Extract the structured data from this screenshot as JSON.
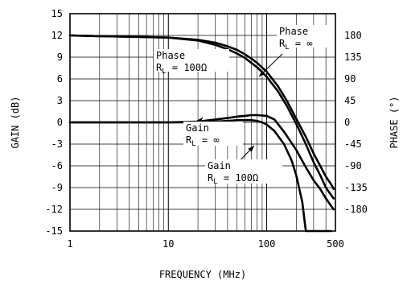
{
  "chart_data": {
    "type": "line",
    "xlabel": "FREQUENCY (MHz)",
    "ylabel": "GAIN (dB)",
    "y2label": "PHASE (°)",
    "x_scale": "log",
    "xlim": [
      1,
      500
    ],
    "ylim": [
      -15,
      15
    ],
    "y2lim": [
      -225,
      225
    ],
    "grid": true,
    "x_ticks": [
      {
        "value": 1,
        "label": "1"
      },
      {
        "value": 10,
        "label": "10"
      },
      {
        "value": 100,
        "label": "100"
      },
      {
        "value": 500,
        "label": "500"
      }
    ],
    "y_ticks": [
      "15",
      "12",
      "9",
      "6",
      "3",
      "0",
      "-3",
      "-6",
      "-9",
      "-12",
      "-15"
    ],
    "y2_ticks": [
      "180",
      "135",
      "90",
      "45",
      "0",
      "-45",
      "-90",
      "-135",
      "-180"
    ],
    "y2_tick_values": [
      180,
      135,
      90,
      45,
      0,
      -45,
      -90,
      -135,
      -180
    ],
    "series": [
      {
        "x": [
          1,
          2,
          5,
          10,
          20,
          30,
          40,
          50,
          60,
          70,
          80,
          100,
          130,
          160,
          200,
          250,
          300,
          350,
          400,
          450,
          480
        ],
        "y": [
          12,
          11.9,
          11.8,
          11.7,
          11.4,
          11.0,
          10.5,
          10.0,
          9.4,
          8.8,
          8.2,
          7.0,
          5.0,
          3.0,
          0.5,
          -2.0,
          -4.3,
          -6.0,
          -7.5,
          -8.5,
          -9.2
        ]
      },
      {
        "x": [
          1,
          2,
          5,
          10,
          20,
          30,
          40,
          50,
          60,
          70,
          80,
          100,
          130,
          160,
          200,
          250,
          300,
          350,
          400,
          450,
          480
        ],
        "y": [
          12,
          11.9,
          11.8,
          11.7,
          11.3,
          10.7,
          10.1,
          9.5,
          8.9,
          8.2,
          7.6,
          6.3,
          4.3,
          2.3,
          -0.2,
          -3.0,
          -5.5,
          -7.3,
          -9.0,
          -10.0,
          -10.5
        ]
      },
      {
        "x": [
          1,
          10,
          20,
          30,
          40,
          50,
          60,
          70,
          80,
          100,
          120,
          150,
          200,
          250,
          300,
          350,
          400,
          450,
          480
        ],
        "y": [
          0,
          0,
          0.1,
          0.4,
          0.6,
          0.8,
          0.9,
          1.0,
          1.0,
          0.9,
          0.4,
          -1.3,
          -3.8,
          -6.2,
          -8.0,
          -9.2,
          -10.5,
          -11.5,
          -12.0
        ]
      },
      {
        "x": [
          1,
          10,
          20,
          30,
          40,
          50,
          60,
          70,
          80,
          90,
          100,
          120,
          150,
          180,
          200,
          230,
          250,
          300,
          400,
          450
        ],
        "y": [
          0,
          0,
          0,
          0.1,
          0.2,
          0.3,
          0.3,
          0.3,
          0.2,
          0,
          -0.3,
          -1.2,
          -3.0,
          -5.3,
          -7.3,
          -11.0,
          -15,
          -15,
          -15,
          -15
        ]
      }
    ],
    "annotations": [
      {
        "line1": "Phase",
        "line2_main": "R",
        "line2_sub": "L",
        "line2_rest": " = ∞"
      },
      {
        "line1": "Phase",
        "line2_main": "R",
        "line2_sub": "L",
        "line2_rest": " = 100Ω"
      },
      {
        "line1": "Gain",
        "line2_main": "R",
        "line2_sub": "L",
        "line2_rest": " = ∞"
      },
      {
        "line1": "Gain",
        "line2_main": "R",
        "line2_sub": "L",
        "line2_rest": " = 100Ω"
      }
    ]
  }
}
